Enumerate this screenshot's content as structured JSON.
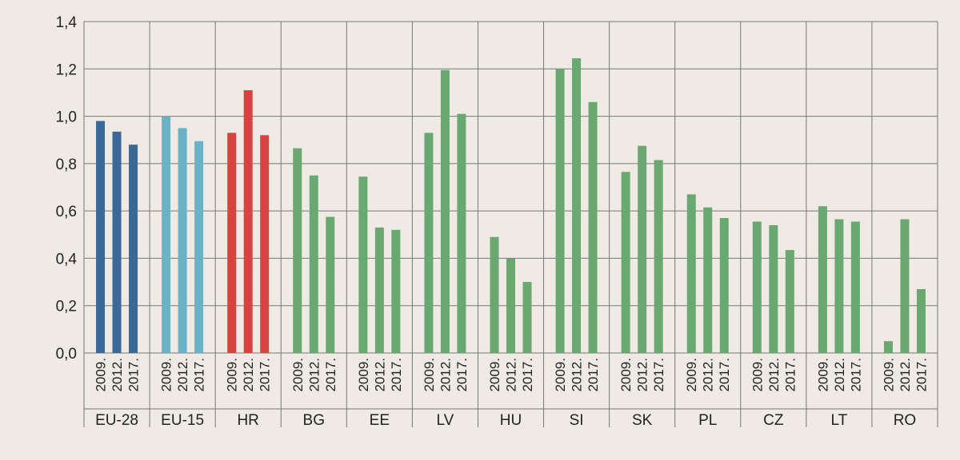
{
  "chart_data": {
    "type": "bar",
    "categories": [
      "EU-28",
      "EU-15",
      "HR",
      "BG",
      "EE",
      "LV",
      "HU",
      "SI",
      "SK",
      "PL",
      "CZ",
      "LT",
      "RO"
    ],
    "series": [
      {
        "values": [
          0.98,
          1.0,
          0.93,
          0.865,
          0.745,
          0.93,
          0.49,
          1.2,
          0.765,
          0.67,
          0.555,
          0.62,
          0.05
        ]
      },
      {
        "values": [
          0.935,
          0.95,
          1.11,
          0.75,
          0.53,
          1.195,
          0.4,
          1.245,
          0.875,
          0.615,
          0.54,
          0.565,
          0.565
        ]
      },
      {
        "values": [
          0.88,
          0.895,
          0.92,
          0.575,
          0.52,
          1.01,
          0.3,
          1.06,
          0.815,
          0.57,
          0.435,
          0.555,
          0.27
        ]
      }
    ],
    "year_labels": [
      "2009.",
      "2012.",
      "2017."
    ],
    "y_ticks": [
      "0,0",
      "0,2",
      "0,4",
      "0,6",
      "0,8",
      "1,0",
      "1,2",
      "1,4"
    ],
    "ylim": [
      0,
      1.4
    ],
    "grid": true,
    "colors": {
      "EU-28": "#3a6897",
      "EU-15": "#6bb2c5",
      "HR": "#d8423f",
      "default": "#6aa872",
      "grid": "#777777",
      "background": "#efebe4"
    }
  }
}
